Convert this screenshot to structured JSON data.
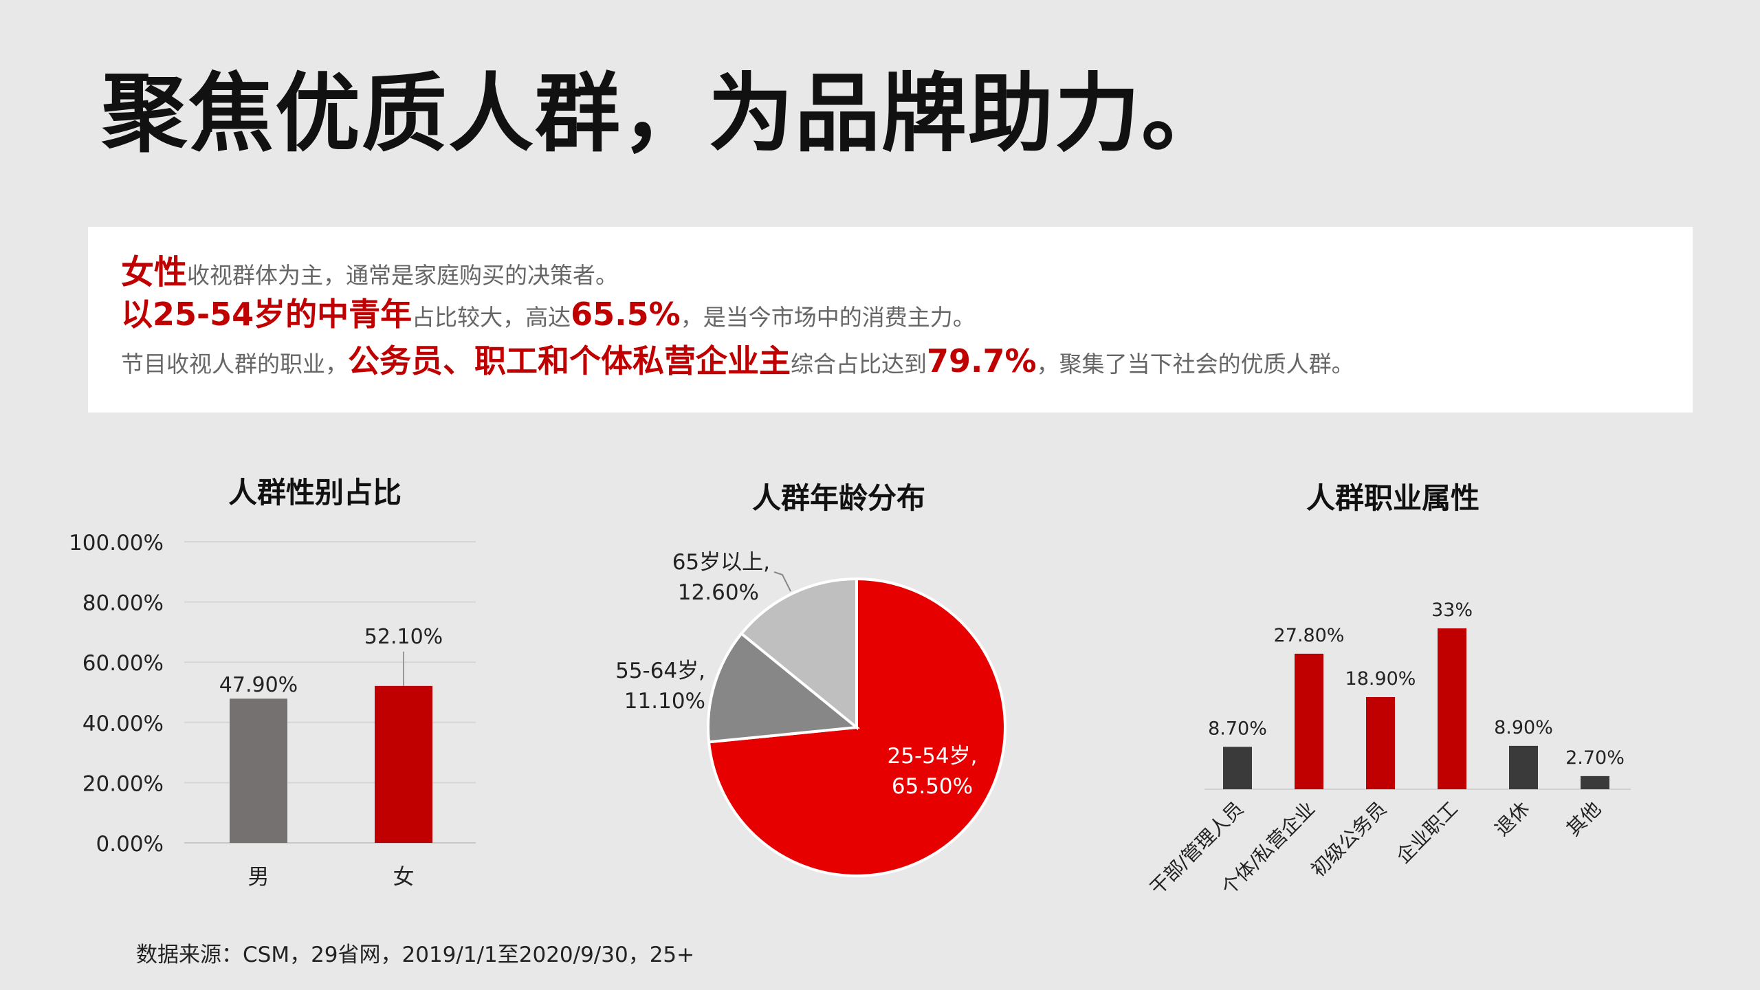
{
  "page": {
    "title": "聚焦优质人群，为品牌助力。",
    "summary": {
      "line1": {
        "highlight": "女性",
        "rest": "收视群体为主，通常是家庭购买的决策者。"
      },
      "line2": {
        "highlight": "以25-54岁的中青年",
        "mid": "占比较大，高达",
        "figure": "65.5%",
        "rest": "，是当今市场中的消费主力。"
      },
      "line3": {
        "pre": "节目收视人群的职业，",
        "highlight": "公务员、职工和个体私营企业主",
        "mid": "综合占比达到",
        "figure": "79.7%",
        "rest": "，聚集了当下社会的优质人群。"
      }
    },
    "source": "数据来源：CSM，29省网，2019/1/1至2020/9/30，25+",
    "colors": {
      "accent": "#c00000",
      "pie_main": "#e60000",
      "grey_bar": "#767171",
      "dark_bar": "#3a3a3a"
    }
  },
  "chart_data": [
    {
      "type": "bar",
      "title": "人群性别占比",
      "categories": [
        "男",
        "女"
      ],
      "values": [
        47.9,
        52.1
      ],
      "value_labels": [
        "47.90%",
        "52.10%"
      ],
      "colors": [
        "#767171",
        "#c00000"
      ],
      "ylim": [
        0,
        100
      ],
      "yticks": [
        0,
        20,
        40,
        60,
        80,
        100
      ],
      "ytick_labels": [
        "0.00%",
        "20.00%",
        "40.00%",
        "60.00%",
        "80.00%",
        "100.00%"
      ],
      "grid": true
    },
    {
      "type": "pie",
      "title": "人群年龄分布",
      "slices": [
        {
          "label": "25-54岁,",
          "value": 65.5,
          "value_label": "65.50%",
          "color": "#e60000"
        },
        {
          "label": "55-64岁,",
          "value": 11.1,
          "value_label": "11.10%",
          "color": "#878787"
        },
        {
          "label": "65岁以上,",
          "value": 12.6,
          "value_label": "12.60%",
          "color": "#bfbfbf"
        }
      ]
    },
    {
      "type": "bar",
      "title": "人群职业属性",
      "categories": [
        "干部/管理人员",
        "个体/私营企业",
        "初级公务员",
        "企业职工",
        "退休",
        "其他"
      ],
      "values": [
        8.7,
        27.8,
        18.9,
        33,
        8.9,
        2.7
      ],
      "value_labels": [
        "8.70%",
        "27.80%",
        "18.90%",
        "33%",
        "8.90%",
        "2.70%"
      ],
      "colors": [
        "#3a3a3a",
        "#c00000",
        "#c00000",
        "#c00000",
        "#3a3a3a",
        "#3a3a3a"
      ],
      "grid": false
    }
  ]
}
